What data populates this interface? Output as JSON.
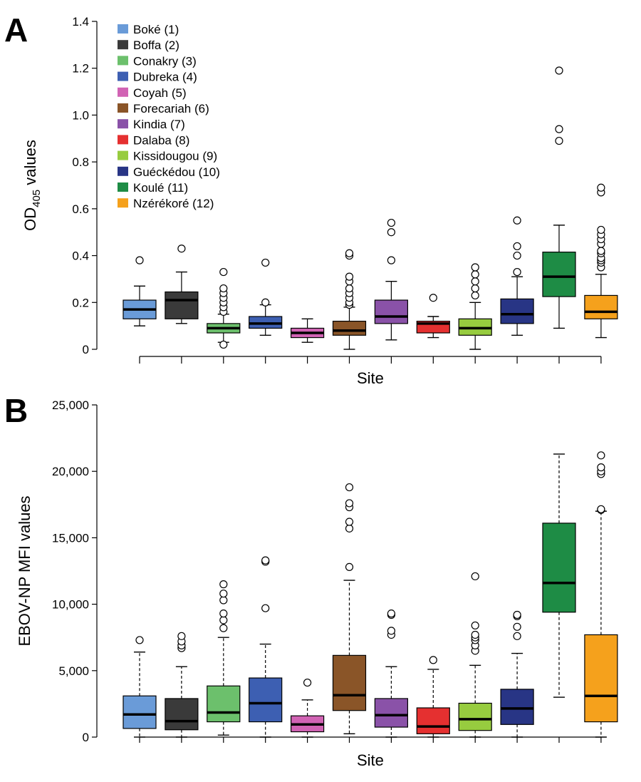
{
  "chart_data": [
    {
      "panel": "A",
      "type": "box",
      "xlabel": "Site",
      "ylabel": {
        "main": "OD",
        "sub": "405",
        "rest": " values"
      },
      "ylim": [
        0,
        1.4
      ],
      "yticks": [
        0,
        0.2,
        0.4,
        0.6,
        0.8,
        1.0,
        1.2,
        1.4
      ],
      "yticklabels": [
        "0",
        "0.2",
        "0.4",
        "0.6",
        "0.8",
        "1.0",
        "1.2",
        "1.4"
      ],
      "legend": {
        "position": "top-left",
        "entries": [
          "Boké (1)",
          "Boffa (2)",
          "Conakry (3)",
          "Dubreka (4)",
          "Coyah (5)",
          "Forecariah (6)",
          "Kindia (7)",
          "Dalaba (8)",
          "Kissidougou (9)",
          "Guéckédou (10)",
          "Koulé (11)",
          "Nzérékoré (12)"
        ]
      },
      "boxes": [
        {
          "site": "Boké (1)",
          "color": "#6a9bd8",
          "min": 0.1,
          "q1": 0.13,
          "median": 0.17,
          "q3": 0.21,
          "max": 0.27,
          "outliers": [
            0.38
          ]
        },
        {
          "site": "Boffa (2)",
          "color": "#3a3a3a",
          "min": 0.11,
          "q1": 0.13,
          "median": 0.21,
          "q3": 0.245,
          "max": 0.33,
          "outliers": [
            0.43
          ]
        },
        {
          "site": "Conakry (3)",
          "color": "#6cc06c",
          "min": 0.03,
          "q1": 0.07,
          "median": 0.09,
          "q3": 0.11,
          "max": 0.15,
          "outliers": [
            0.02,
            0.16,
            0.18,
            0.2,
            0.22,
            0.24,
            0.26,
            0.33
          ]
        },
        {
          "site": "Dubreka (4)",
          "color": "#3d5fb2",
          "min": 0.06,
          "q1": 0.09,
          "median": 0.11,
          "q3": 0.14,
          "max": 0.19,
          "outliers": [
            0.2,
            0.37
          ]
        },
        {
          "site": "Coyah (5)",
          "color": "#d163b4",
          "min": 0.03,
          "q1": 0.05,
          "median": 0.07,
          "q3": 0.09,
          "max": 0.13,
          "outliers": []
        },
        {
          "site": "Forecariah (6)",
          "color": "#8a5528",
          "min": 0.0,
          "q1": 0.06,
          "median": 0.08,
          "q3": 0.12,
          "max": 0.18,
          "outliers": [
            0.19,
            0.2,
            0.22,
            0.24,
            0.26,
            0.29,
            0.31,
            0.4,
            0.41
          ]
        },
        {
          "site": "Kindia (7)",
          "color": "#8a52a8",
          "min": 0.04,
          "q1": 0.11,
          "median": 0.14,
          "q3": 0.21,
          "max": 0.29,
          "outliers": [
            0.38,
            0.5,
            0.54
          ]
        },
        {
          "site": "Dalaba (8)",
          "color": "#e53030",
          "min": 0.05,
          "q1": 0.07,
          "median": 0.11,
          "q3": 0.12,
          "max": 0.14,
          "outliers": [
            0.22
          ]
        },
        {
          "site": "Kissidougou (9)",
          "color": "#97cc3f",
          "min": 0.0,
          "q1": 0.06,
          "median": 0.09,
          "q3": 0.13,
          "max": 0.2,
          "outliers": [
            0.23,
            0.26,
            0.29,
            0.32,
            0.35
          ]
        },
        {
          "site": "Guéckédou (10)",
          "color": "#283585",
          "min": 0.06,
          "q1": 0.11,
          "median": 0.15,
          "q3": 0.215,
          "max": 0.31,
          "outliers": [
            0.33,
            0.4,
            0.44,
            0.55
          ]
        },
        {
          "site": "Koulé (11)",
          "color": "#1e8c45",
          "min": 0.09,
          "q1": 0.225,
          "median": 0.31,
          "q3": 0.415,
          "max": 0.53,
          "outliers": [
            0.89,
            0.94,
            1.19
          ]
        },
        {
          "site": "Nzérékoré (12)",
          "color": "#f5a11c",
          "min": 0.05,
          "q1": 0.13,
          "median": 0.16,
          "q3": 0.23,
          "max": 0.32,
          "outliers": [
            0.35,
            0.37,
            0.38,
            0.39,
            0.41,
            0.42,
            0.45,
            0.47,
            0.49,
            0.51,
            0.67,
            0.69
          ]
        }
      ]
    },
    {
      "panel": "B",
      "type": "box",
      "xlabel": "Site",
      "ylabel": "EBOV-NP MFI values",
      "ylim": [
        0,
        25000
      ],
      "yticks": [
        0,
        5000,
        10000,
        15000,
        20000,
        25000
      ],
      "yticklabels": [
        "0",
        "5,000",
        "10,000",
        "15,000",
        "20,000",
        "25,000"
      ],
      "boxes": [
        {
          "site": "Boké (1)",
          "color": "#6a9bd8",
          "min": 0,
          "q1": 650,
          "median": 1700,
          "q3": 3100,
          "max": 6400,
          "outliers": [
            7300
          ]
        },
        {
          "site": "Boffa (2)",
          "color": "#3a3a3a",
          "min": 0,
          "q1": 550,
          "median": 1200,
          "q3": 2900,
          "max": 5300,
          "outliers": [
            6700,
            6900,
            7200,
            7600
          ]
        },
        {
          "site": "Conakry (3)",
          "color": "#6cc06c",
          "min": 150,
          "q1": 1150,
          "median": 1850,
          "q3": 3850,
          "max": 7500,
          "outliers": [
            8200,
            8800,
            9300,
            10300,
            10800,
            11500
          ]
        },
        {
          "site": "Dubreka (4)",
          "color": "#3d5fb2",
          "min": 0,
          "q1": 1150,
          "median": 2550,
          "q3": 4450,
          "max": 7000,
          "outliers": [
            9700,
            13200,
            13300
          ]
        },
        {
          "site": "Coyah (5)",
          "color": "#d163b4",
          "min": 0,
          "q1": 400,
          "median": 950,
          "q3": 1600,
          "max": 2800,
          "outliers": [
            4100
          ]
        },
        {
          "site": "Forecariah (6)",
          "color": "#8a5528",
          "min": 250,
          "q1": 2000,
          "median": 3150,
          "q3": 6150,
          "max": 11800,
          "outliers": [
            12800,
            15700,
            16200,
            17300,
            17600,
            18800
          ]
        },
        {
          "site": "Kindia (7)",
          "color": "#8a52a8",
          "min": 0,
          "q1": 750,
          "median": 1650,
          "q3": 2900,
          "max": 5300,
          "outliers": [
            7700,
            8000,
            9200,
            9300
          ]
        },
        {
          "site": "Dalaba (8)",
          "color": "#e53030",
          "min": 0,
          "q1": 250,
          "median": 800,
          "q3": 2200,
          "max": 5100,
          "outliers": [
            5800
          ]
        },
        {
          "site": "Kissidougou (9)",
          "color": "#97cc3f",
          "min": 0,
          "q1": 500,
          "median": 1350,
          "q3": 2550,
          "max": 5400,
          "outliers": [
            6500,
            6900,
            7300,
            7500,
            7700,
            8400,
            12100
          ]
        },
        {
          "site": "Guéckédou (10)",
          "color": "#283585",
          "min": 0,
          "q1": 950,
          "median": 2150,
          "q3": 3600,
          "max": 6300,
          "outliers": [
            7600,
            8300,
            9100,
            9200
          ]
        },
        {
          "site": "Koulé (11)",
          "color": "#1e8c45",
          "min": 3000,
          "q1": 9400,
          "median": 11600,
          "q3": 16100,
          "max": 21300,
          "outliers": []
        },
        {
          "site": "Nzérékoré (12)",
          "color": "#f5a11c",
          "min": 0,
          "q1": 1150,
          "median": 3100,
          "q3": 7700,
          "max": 17000,
          "outliers": [
            17100,
            17150,
            19800,
            20000,
            20300,
            21200
          ]
        }
      ]
    }
  ]
}
